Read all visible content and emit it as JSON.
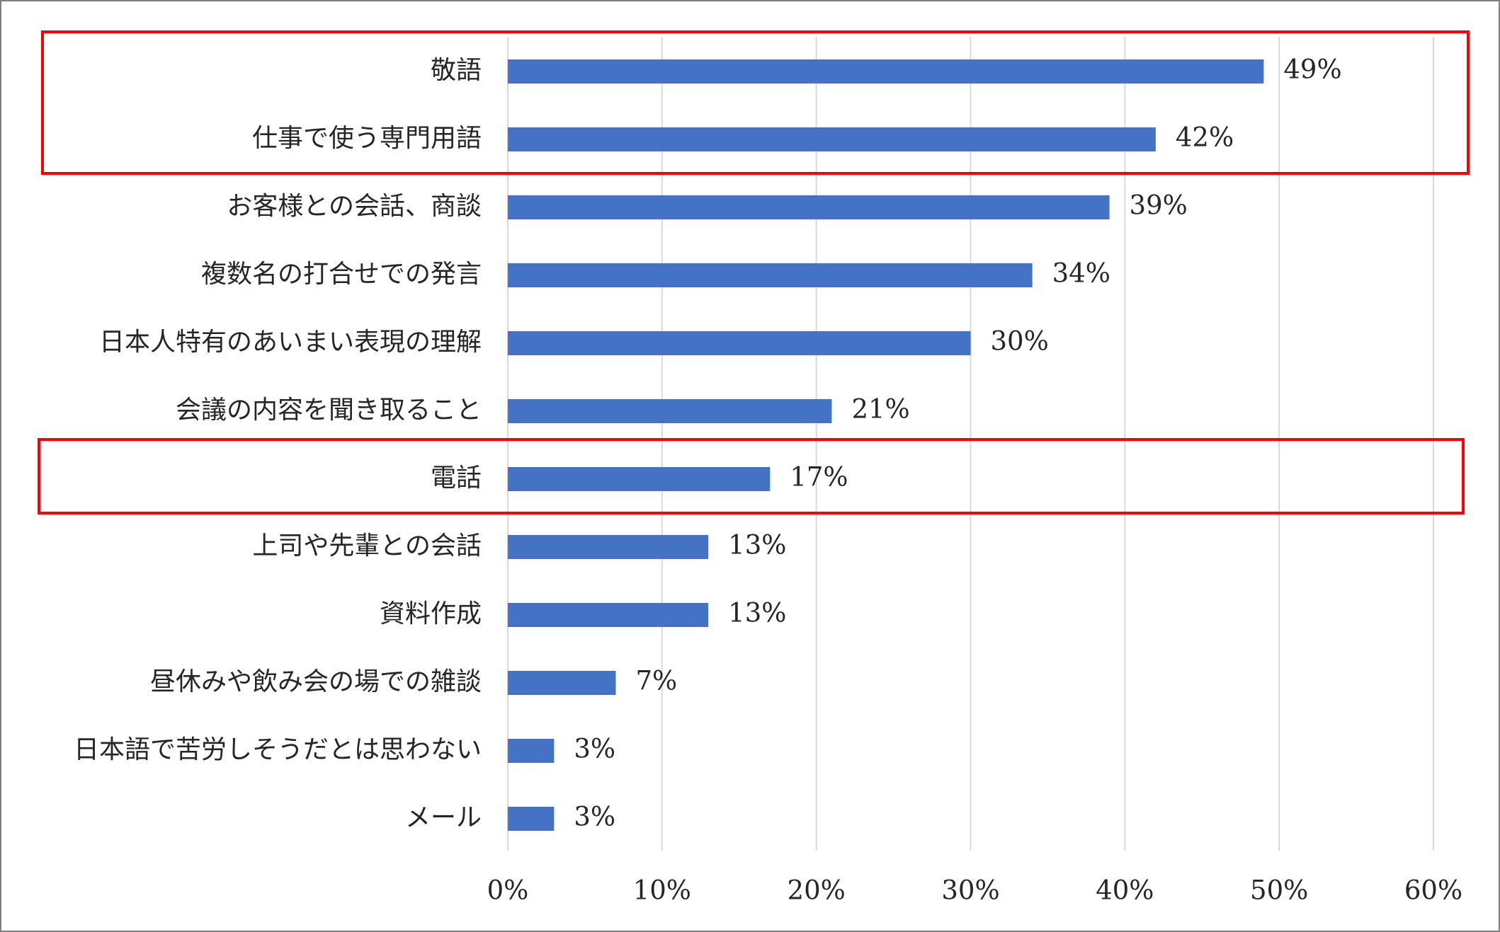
{
  "chart_data": {
    "type": "bar",
    "orientation": "horizontal",
    "title": "",
    "xlabel": "",
    "ylabel": "",
    "categories": [
      "敬語",
      "仕事で使う専門用語",
      "お客様との会話、商談",
      "複数名の打合せでの発言",
      "日本人特有のあいまい表現の理解",
      "会議の内容を聞き取ること",
      "電話",
      "上司や先輩との会話",
      "資料作成",
      "昼休みや飲み会の場での雑談",
      "日本語で苦労しそうだとは思わない",
      "メール"
    ],
    "values": [
      49,
      42,
      39,
      34,
      30,
      21,
      17,
      13,
      13,
      7,
      3,
      3
    ],
    "value_labels": [
      "49%",
      "42%",
      "39%",
      "34%",
      "30%",
      "21%",
      "17%",
      "13%",
      "13%",
      "7%",
      "3%",
      "3%"
    ],
    "xlim": [
      0,
      60
    ],
    "x_ticks": [
      0,
      10,
      20,
      30,
      40,
      50,
      60
    ],
    "x_tick_labels": [
      "0%",
      "10%",
      "20%",
      "30%",
      "40%",
      "50%",
      "60%"
    ],
    "grid": true,
    "legend": "none",
    "highlight_groups": [
      [
        "敬語",
        "仕事で使う専門用語"
      ],
      [
        "電話"
      ]
    ],
    "colors": {
      "bar": "#4472c4",
      "grid": "#d9d9d9",
      "highlight": "#ff0000",
      "text": "#262626"
    }
  }
}
